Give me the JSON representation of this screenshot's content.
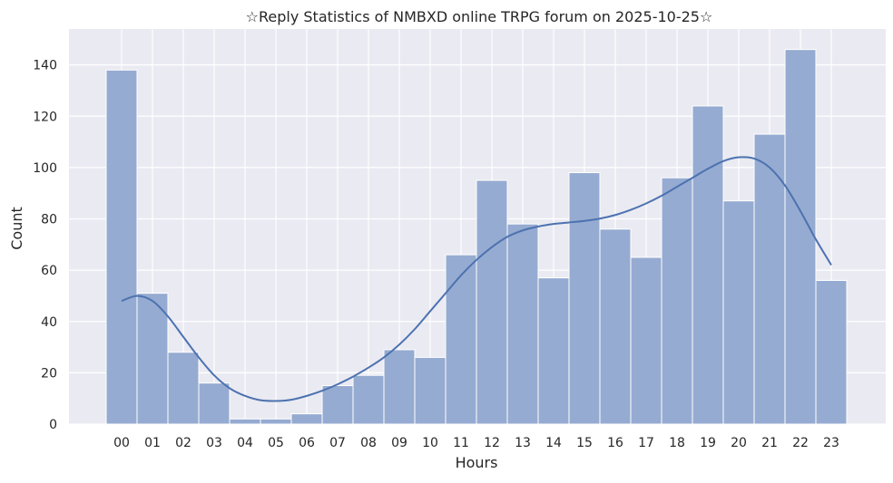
{
  "chart_data": {
    "type": "bar",
    "title": "☆Reply Statistics of NMBXD online TRPG forum on 2025-10-25☆",
    "xlabel": "Hours",
    "ylabel": "Count",
    "categories": [
      "00",
      "01",
      "02",
      "03",
      "04",
      "05",
      "06",
      "07",
      "08",
      "09",
      "10",
      "11",
      "12",
      "13",
      "14",
      "15",
      "16",
      "17",
      "18",
      "19",
      "20",
      "21",
      "22",
      "23"
    ],
    "values": [
      138,
      51,
      28,
      16,
      2,
      2,
      4,
      15,
      19,
      29,
      26,
      66,
      95,
      78,
      57,
      98,
      76,
      65,
      96,
      124,
      87,
      113,
      146,
      56
    ],
    "yticks": [
      "0",
      "20",
      "40",
      "60",
      "80",
      "100",
      "120",
      "140"
    ],
    "ylim": [
      0,
      154
    ],
    "grid": true,
    "kde": {
      "x": [
        0,
        0.5,
        1,
        1.5,
        2,
        2.5,
        3,
        3.5,
        4,
        4.5,
        5,
        5.5,
        6,
        6.5,
        7,
        7.5,
        8,
        8.5,
        9,
        9.5,
        10,
        10.5,
        11,
        11.5,
        12,
        12.5,
        13,
        13.5,
        14,
        14.5,
        15,
        15.5,
        16,
        16.5,
        17,
        17.5,
        18,
        18.5,
        19,
        19.5,
        20,
        20.5,
        21,
        21.5,
        22,
        22.5,
        23
      ],
      "y": [
        48,
        50,
        48,
        42,
        34,
        26,
        19,
        14,
        11,
        9.3,
        9,
        9.5,
        11,
        13,
        15.5,
        18.5,
        22,
        26,
        31,
        37,
        44,
        51,
        58,
        64,
        69,
        73,
        75.5,
        77,
        78,
        78.6,
        79.2,
        80.1,
        81.5,
        83.5,
        86,
        89,
        92.5,
        96,
        99.5,
        102.5,
        104,
        103.5,
        100,
        93,
        83,
        72,
        62
      ]
    },
    "colors": {
      "bar_fill": "#96abd1",
      "bar_edge": "#ffffff",
      "kde_line": "#4c72b0",
      "plot_bg": "#eaeaf2",
      "grid": "#ffffff"
    }
  }
}
